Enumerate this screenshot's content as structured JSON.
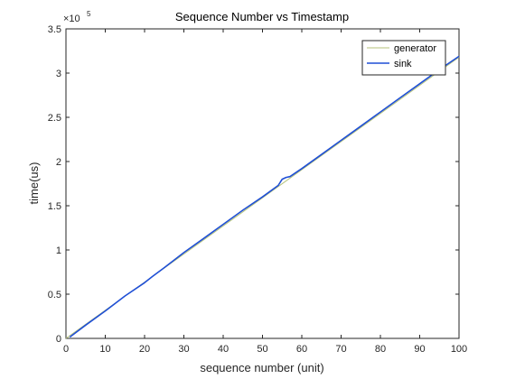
{
  "chart_data": {
    "type": "line",
    "title": "Sequence Number vs Timestamp",
    "xlabel": "sequence number (unit)",
    "ylabel": "time(us)",
    "xlim": [
      0,
      100
    ],
    "ylim": [
      0,
      350000
    ],
    "x_ticks": [
      0,
      10,
      20,
      30,
      40,
      50,
      60,
      70,
      80,
      90,
      100
    ],
    "y_ticks": [
      0,
      0.5,
      1,
      1.5,
      2,
      2.5,
      3,
      3.5
    ],
    "y_tick_labels": [
      "0",
      "0.5",
      "1",
      "1.5",
      "2",
      "2.5",
      "3",
      "3.5"
    ],
    "y_exponent_prefix": "×10",
    "y_exponent_power": "5",
    "y_exponent_multiplier": 100000,
    "grid": false,
    "legend_position": "top-right",
    "series": [
      {
        "name": "generator",
        "color": "#b5c27a",
        "x": [
          0,
          100
        ],
        "y": [
          0,
          318000
        ]
      },
      {
        "name": "sink",
        "color": "#1f4fd6",
        "x": [
          1,
          5,
          10,
          15,
          20,
          22,
          25,
          30,
          35,
          40,
          45,
          50,
          54,
          55,
          56,
          57,
          60,
          65,
          70,
          75,
          80,
          85,
          90,
          95,
          100
        ],
        "y": [
          1500,
          15000,
          31000,
          48000,
          63000,
          70000,
          80000,
          97000,
          113000,
          129000,
          145000,
          160000,
          173000,
          180000,
          182000,
          183000,
          192000,
          208000,
          224000,
          240000,
          256000,
          272000,
          288000,
          304000,
          319000
        ]
      }
    ]
  }
}
